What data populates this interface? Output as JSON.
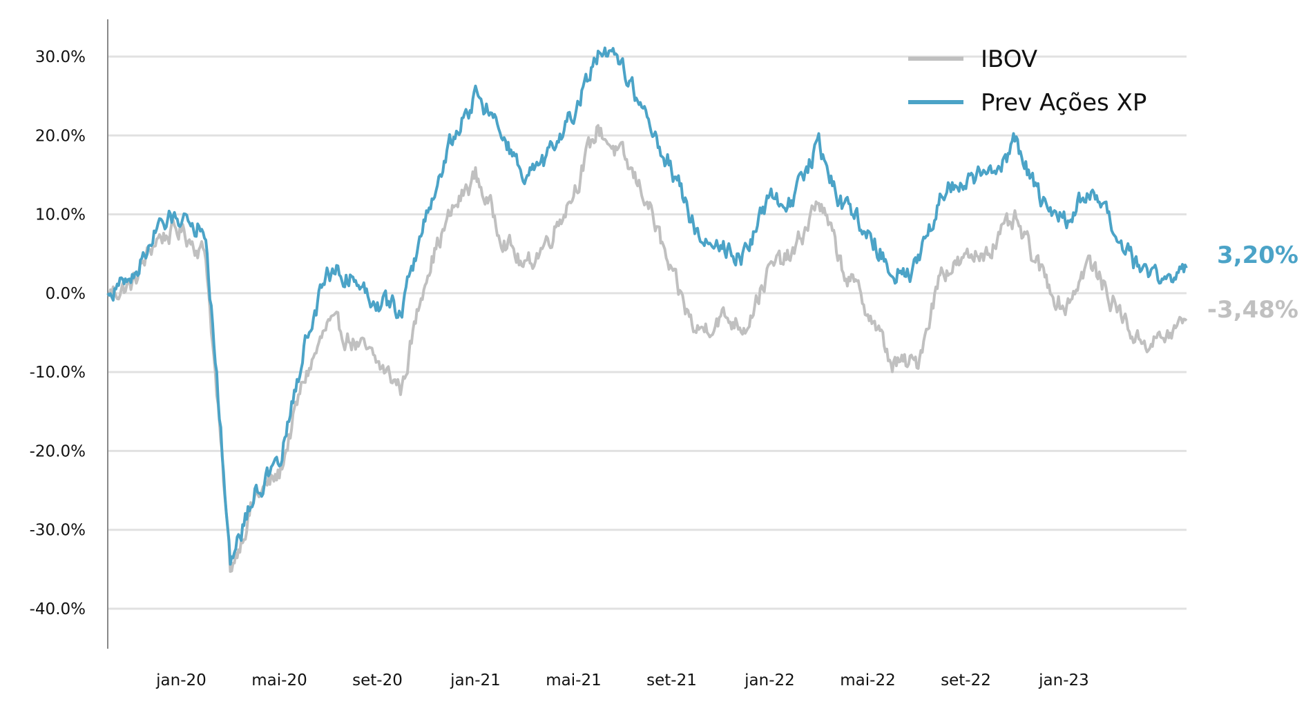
{
  "chart_data": {
    "type": "line",
    "title": "",
    "xlabel": "",
    "ylabel": "",
    "ylim": [
      -0.4,
      0.3
    ],
    "y_ticks": [
      0.3,
      0.2,
      0.1,
      0.0,
      -0.1,
      -0.2,
      -0.3,
      -0.4
    ],
    "y_tick_labels": [
      "30.0%",
      "20.0%",
      "10.0%",
      "0.0%",
      "-10.0%",
      "-20.0%",
      "-30.0%",
      "-40.0%"
    ],
    "x_tick_labels": [
      "jan-20",
      "mai-20",
      "set-20",
      "jan-21",
      "mai-21",
      "set-21",
      "jan-22",
      "mai-22",
      "set-22",
      "jan-23"
    ],
    "x_tick_dates": [
      "2020-01",
      "2020-05",
      "2020-09",
      "2021-01",
      "2021-05",
      "2021-09",
      "2022-01",
      "2022-05",
      "2022-09",
      "2023-01"
    ],
    "x_range": [
      "2019-10",
      "2023-06"
    ],
    "grid": true,
    "legend_position": "top-right",
    "series": [
      {
        "name": "IBOV",
        "color": "#c0c0c0",
        "end_label": "-3,48%",
        "points": [
          [
            "2019-10",
            0.0
          ],
          [
            "2019-11",
            0.01
          ],
          [
            "2019-12",
            0.07
          ],
          [
            "2020-01",
            0.08
          ],
          [
            "2020-02",
            0.05
          ],
          [
            "2020-03",
            -0.35
          ],
          [
            "2020-04",
            -0.26
          ],
          [
            "2020-05",
            -0.23
          ],
          [
            "2020-06",
            -0.11
          ],
          [
            "2020-07",
            -0.04
          ],
          [
            "2020-08",
            -0.06
          ],
          [
            "2020-09",
            -0.09
          ],
          [
            "2020-10",
            -0.12
          ],
          [
            "2020-11",
            0.03
          ],
          [
            "2020-12",
            0.1
          ],
          [
            "2021-01",
            0.15
          ],
          [
            "2021-02",
            0.08
          ],
          [
            "2021-03",
            0.03
          ],
          [
            "2021-04",
            0.07
          ],
          [
            "2021-05",
            0.13
          ],
          [
            "2021-06",
            0.21
          ],
          [
            "2021-07",
            0.17
          ],
          [
            "2021-08",
            0.12
          ],
          [
            "2021-09",
            0.02
          ],
          [
            "2021-10",
            -0.05
          ],
          [
            "2021-11",
            -0.03
          ],
          [
            "2021-12",
            -0.04
          ],
          [
            "2022-01",
            0.03
          ],
          [
            "2022-02",
            0.05
          ],
          [
            "2022-03",
            0.12
          ],
          [
            "2022-04",
            0.03
          ],
          [
            "2022-05",
            -0.02
          ],
          [
            "2022-06",
            -0.09
          ],
          [
            "2022-07",
            -0.09
          ],
          [
            "2022-08",
            0.03
          ],
          [
            "2022-09",
            0.04
          ],
          [
            "2022-10",
            0.06
          ],
          [
            "2022-11",
            0.09
          ],
          [
            "2022-12",
            0.03
          ],
          [
            "2023-01",
            -0.02
          ],
          [
            "2023-02",
            0.04
          ],
          [
            "2023-03",
            -0.01
          ],
          [
            "2023-04",
            -0.06
          ],
          [
            "2023-05",
            -0.06
          ],
          [
            "2023-06",
            -0.0348
          ]
        ]
      },
      {
        "name": "Prev Ações XP",
        "color": "#4ba3c7",
        "end_label": "3,20%",
        "points": [
          [
            "2019-10",
            0.0
          ],
          [
            "2019-11",
            0.02
          ],
          [
            "2019-12",
            0.08
          ],
          [
            "2020-01",
            0.1
          ],
          [
            "2020-02",
            0.08
          ],
          [
            "2020-03",
            -0.34
          ],
          [
            "2020-04",
            -0.25
          ],
          [
            "2020-05",
            -0.22
          ],
          [
            "2020-06",
            -0.07
          ],
          [
            "2020-07",
            0.03
          ],
          [
            "2020-08",
            0.02
          ],
          [
            "2020-09",
            -0.01
          ],
          [
            "2020-10",
            -0.02
          ],
          [
            "2020-11",
            0.1
          ],
          [
            "2020-12",
            0.19
          ],
          [
            "2021-01",
            0.25
          ],
          [
            "2021-02",
            0.21
          ],
          [
            "2021-03",
            0.14
          ],
          [
            "2021-04",
            0.17
          ],
          [
            "2021-05",
            0.23
          ],
          [
            "2021-06",
            0.3
          ],
          [
            "2021-07",
            0.29
          ],
          [
            "2021-08",
            0.22
          ],
          [
            "2021-09",
            0.16
          ],
          [
            "2021-10",
            0.08
          ],
          [
            "2021-11",
            0.06
          ],
          [
            "2021-12",
            0.05
          ],
          [
            "2022-01",
            0.12
          ],
          [
            "2022-02",
            0.12
          ],
          [
            "2022-03",
            0.19
          ],
          [
            "2022-04",
            0.11
          ],
          [
            "2022-05",
            0.08
          ],
          [
            "2022-06",
            0.03
          ],
          [
            "2022-07",
            0.03
          ],
          [
            "2022-08",
            0.13
          ],
          [
            "2022-09",
            0.14
          ],
          [
            "2022-10",
            0.15
          ],
          [
            "2022-11",
            0.19
          ],
          [
            "2022-12",
            0.12
          ],
          [
            "2023-01",
            0.09
          ],
          [
            "2023-02",
            0.13
          ],
          [
            "2023-03",
            0.08
          ],
          [
            "2023-04",
            0.03
          ],
          [
            "2023-05",
            0.02
          ],
          [
            "2023-06",
            0.032
          ]
        ]
      }
    ]
  }
}
